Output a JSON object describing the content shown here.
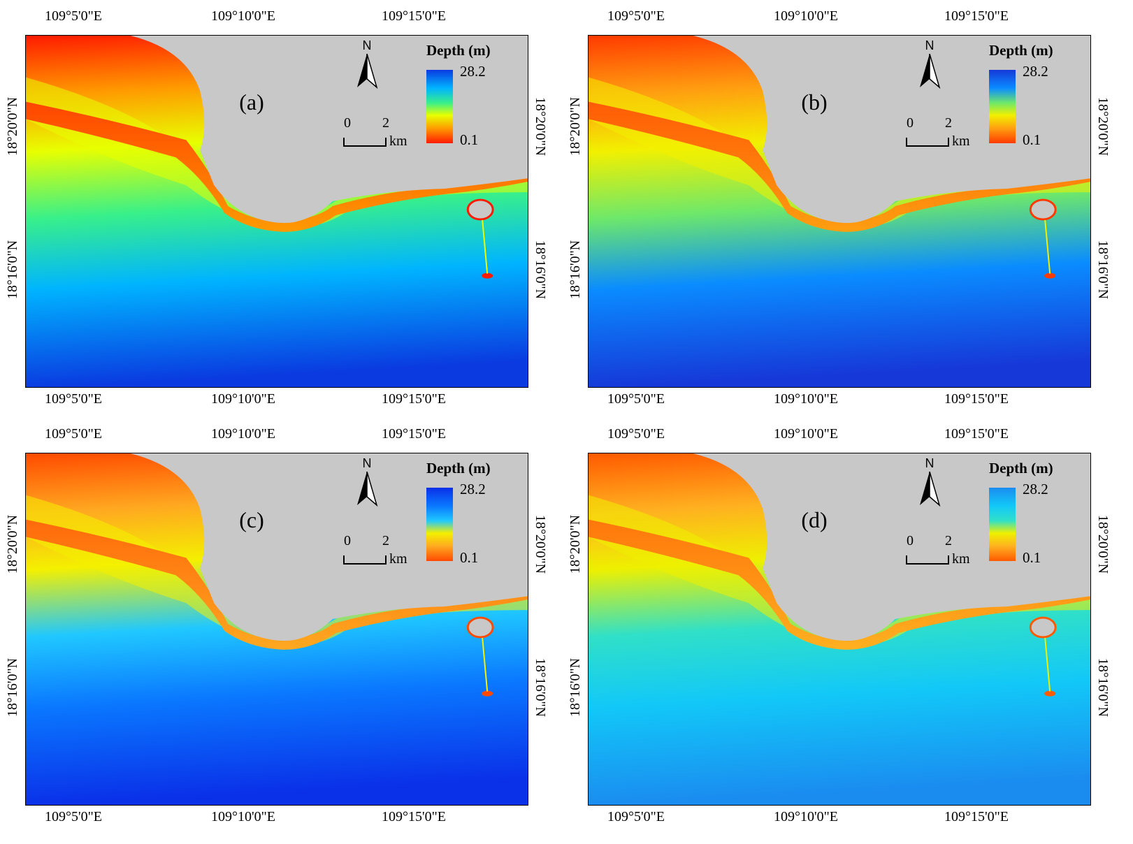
{
  "figure": {
    "panels": [
      {
        "label": "(a)",
        "coords_top": [
          "109°5'0\"E",
          "109°10'0\"E",
          "109°15'0\"E"
        ],
        "coords_bottom": [
          "109°5'0\"E",
          "109°10'0\"E",
          "109°15'0\"E"
        ],
        "coords_left": [
          "18°20'0\"N",
          "18°16'0\"N"
        ],
        "coords_right": [
          "18°20'0\"N",
          "18°16'0\"N"
        ],
        "north_arrow": "N",
        "scale": {
          "ticks": [
            "0",
            "2"
          ],
          "unit": "km"
        },
        "legend": {
          "title": "Depth (m)",
          "max": "28.2",
          "min": "0.1"
        },
        "palette": {
          "shallow": "#ff1a00",
          "mid1": "#ff9a00",
          "mid2": "#e8ff00",
          "mid3": "#38f08a",
          "deep1": "#00b4ff",
          "deep2": "#0a3ae0"
        }
      },
      {
        "label": "(b)",
        "coords_top": [
          "109°5'0\"E",
          "109°10'0\"E",
          "109°15'0\"E"
        ],
        "coords_bottom": [
          "109°5'0\"E",
          "109°10'0\"E",
          "109°15'0\"E"
        ],
        "coords_left": [
          "18°20'0\"N",
          "18°16'0\"N"
        ],
        "coords_right": [
          "18°20'0\"N",
          "18°16'0\"N"
        ],
        "north_arrow": "N",
        "scale": {
          "ticks": [
            "0",
            "2"
          ],
          "unit": "km"
        },
        "legend": {
          "title": "Depth (m)",
          "max": "28.2",
          "min": "0.1"
        },
        "palette": {
          "shallow": "#ff3a00",
          "mid1": "#ff9e10",
          "mid2": "#f2f000",
          "mid3": "#6ee86a",
          "deep1": "#0a8cff",
          "deep2": "#1638d8"
        }
      },
      {
        "label": "(c)",
        "coords_top": [
          "109°5'0\"E",
          "109°10'0\"E",
          "109°15'0\"E"
        ],
        "coords_bottom": [
          "109°5'0\"E",
          "109°10'0\"E",
          "109°15'0\"E"
        ],
        "coords_left": [
          "18°20'0\"N",
          "18°16'0\"N"
        ],
        "coords_right": [
          "18°20'0\"N",
          "18°16'0\"N"
        ],
        "north_arrow": "N",
        "scale": {
          "ticks": [
            "0",
            "2"
          ],
          "unit": "km"
        },
        "legend": {
          "title": "Depth (m)",
          "max": "28.2",
          "min": "0.1"
        },
        "palette": {
          "shallow": "#ff4a00",
          "mid1": "#ffa820",
          "mid2": "#f4f000",
          "mid3": "#20c8ff",
          "deep1": "#0a78ff",
          "deep2": "#0a30e8"
        }
      },
      {
        "label": "(d)",
        "coords_top": [
          "109°5'0\"E",
          "109°10'0\"E",
          "109°15'0\"E"
        ],
        "coords_bottom": [
          "109°5'0\"E",
          "109°10'0\"E",
          "109°15'0\"E"
        ],
        "coords_left": [
          "18°20'0\"N",
          "18°16'0\"N"
        ],
        "coords_right": [
          "18°20'0\"N",
          "18°16'0\"N"
        ],
        "north_arrow": "N",
        "scale": {
          "ticks": [
            "0",
            "2"
          ],
          "unit": "km"
        },
        "legend": {
          "title": "Depth (m)",
          "max": "28.2",
          "min": "0.1"
        },
        "palette": {
          "shallow": "#ff5a00",
          "mid1": "#ffb020",
          "mid2": "#eef000",
          "mid3": "#30e0c8",
          "deep1": "#12c8f8",
          "deep2": "#1a8cf0"
        }
      }
    ],
    "land_color": "#c8c8c8"
  }
}
